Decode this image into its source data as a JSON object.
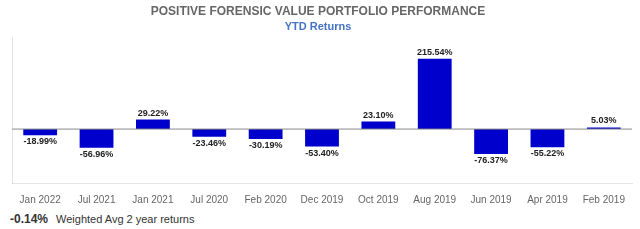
{
  "chart_data": {
    "type": "bar",
    "title": "POSITIVE FORENSIC VALUE PORTFOLIO PERFORMANCE",
    "subtitle": "YTD Returns",
    "categories": [
      "Jan 2022",
      "Jul 2021",
      "Jan 2021",
      "Jul 2020",
      "Feb 2020",
      "Dec 2019",
      "Oct 2019",
      "Aug 2019",
      "Jun 2019",
      "Apr 2019",
      "Feb 2019"
    ],
    "values": [
      -18.99,
      -56.96,
      29.22,
      -23.46,
      -30.19,
      -53.4,
      23.1,
      215.54,
      -76.37,
      -55.22,
      5.03
    ],
    "value_labels": [
      "-18.99%",
      "-56.96%",
      "29.22%",
      "-23.46%",
      "-30.19%",
      "-53.40%",
      "23.10%",
      "215.54%",
      "-76.37%",
      "-55.22%",
      "5.03%"
    ],
    "color": "#0000CD",
    "ylim": [
      -165,
      280
    ],
    "grid": false,
    "tick_labels": "x",
    "data_labels": true,
    "annotations": [
      "-0.14%",
      "Weighted Avg 2 year returns"
    ]
  }
}
